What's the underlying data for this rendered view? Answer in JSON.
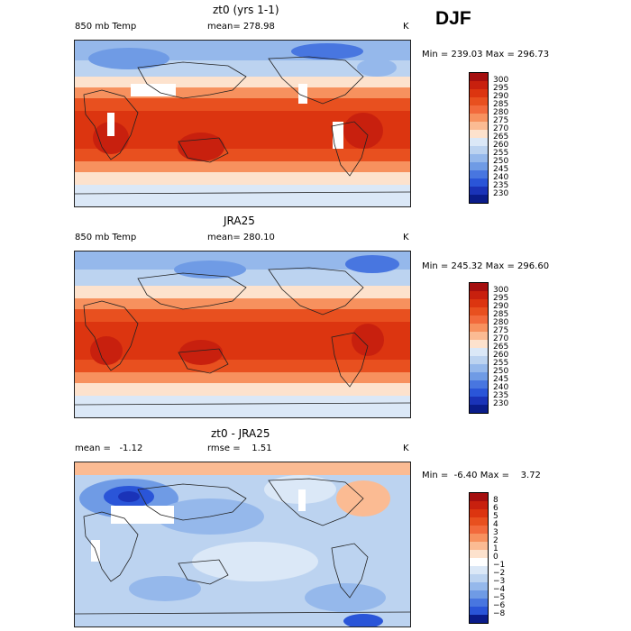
{
  "header": {
    "season": "DJF"
  },
  "panels": [
    {
      "id": "model",
      "title": "zt0 (yrs 1-1)",
      "left_label": "850 mb Temp",
      "center_label": "mean= 278.98",
      "units": "K",
      "minmax": "Min = 239.03 Max = 296.73",
      "colorbar": {
        "labels": [
          "300",
          "295",
          "290",
          "285",
          "280",
          "275",
          "270",
          "265",
          "260",
          "255",
          "250",
          "245",
          "240",
          "235",
          "230"
        ],
        "colors": [
          "#a50f0f",
          "#c8200e",
          "#dc3510",
          "#e8501f",
          "#f26a3c",
          "#f7915e",
          "#fbbb93",
          "#fde2cd",
          "#dbe8f7",
          "#bcd3f0",
          "#95b8eb",
          "#6f9be5",
          "#4876e0",
          "#2a55d8",
          "#1a33b8",
          "#0a1c8a"
        ]
      }
    },
    {
      "id": "obs",
      "title": "JRA25",
      "left_label": "850 mb Temp",
      "center_label": "mean= 280.10",
      "units": "K",
      "minmax": "Min = 245.32 Max = 296.60",
      "colorbar": {
        "labels": [
          "300",
          "295",
          "290",
          "285",
          "280",
          "275",
          "270",
          "265",
          "260",
          "255",
          "250",
          "245",
          "240",
          "235",
          "230"
        ],
        "colors": [
          "#a50f0f",
          "#c8200e",
          "#dc3510",
          "#e8501f",
          "#f26a3c",
          "#f7915e",
          "#fbbb93",
          "#fde2cd",
          "#dbe8f7",
          "#bcd3f0",
          "#95b8eb",
          "#6f9be5",
          "#4876e0",
          "#2a55d8",
          "#1a33b8",
          "#0a1c8a"
        ]
      }
    },
    {
      "id": "diff",
      "title": "zt0 - JRA25",
      "left_label": "mean =   -1.12",
      "center_label": "rmse =    1.51",
      "units": "K",
      "minmax": "Min =  -6.40 Max =    3.72",
      "colorbar": {
        "labels": [
          "8",
          "6",
          "5",
          "4",
          "3",
          "2",
          "1",
          "0",
          "−1",
          "−2",
          "−3",
          "−4",
          "−5",
          "−6",
          "−8"
        ],
        "colors": [
          "#a50f0f",
          "#c8200e",
          "#dc3510",
          "#e8501f",
          "#f26a3c",
          "#f7915e",
          "#fbbb93",
          "#fde2cd",
          "#ffffff",
          "#dbe8f7",
          "#bcd3f0",
          "#95b8eb",
          "#6f9be5",
          "#4876e0",
          "#2a55d8",
          "#0a1c8a"
        ]
      }
    }
  ]
}
